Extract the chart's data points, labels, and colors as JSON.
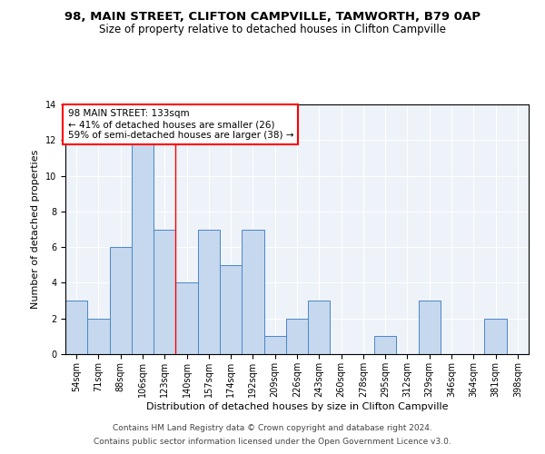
{
  "title": "98, MAIN STREET, CLIFTON CAMPVILLE, TAMWORTH, B79 0AP",
  "subtitle": "Size of property relative to detached houses in Clifton Campville",
  "xlabel": "Distribution of detached houses by size in Clifton Campville",
  "ylabel": "Number of detached properties",
  "footer_line1": "Contains HM Land Registry data © Crown copyright and database right 2024.",
  "footer_line2": "Contains public sector information licensed under the Open Government Licence v3.0.",
  "annotation_line1": "98 MAIN STREET: 133sqm",
  "annotation_line2": "← 41% of detached houses are smaller (26)",
  "annotation_line3": "59% of semi-detached houses are larger (38) →",
  "bin_labels": [
    "54sqm",
    "71sqm",
    "88sqm",
    "106sqm",
    "123sqm",
    "140sqm",
    "157sqm",
    "174sqm",
    "192sqm",
    "209sqm",
    "226sqm",
    "243sqm",
    "260sqm",
    "278sqm",
    "295sqm",
    "312sqm",
    "329sqm",
    "346sqm",
    "364sqm",
    "381sqm",
    "398sqm"
  ],
  "bar_values": [
    3,
    2,
    6,
    12,
    7,
    4,
    7,
    5,
    7,
    1,
    2,
    3,
    0,
    0,
    1,
    0,
    3,
    0,
    0,
    2,
    0
  ],
  "bar_color": "#c5d8ed",
  "bar_edge_color": "#4a86c8",
  "reference_line_x": 4.5,
  "reference_line_color": "red",
  "ylim": [
    0,
    14
  ],
  "yticks": [
    0,
    2,
    4,
    6,
    8,
    10,
    12,
    14
  ],
  "bg_color": "#eef2f9",
  "annotation_box_color": "white",
  "annotation_box_edge": "red",
  "title_fontsize": 9.5,
  "subtitle_fontsize": 8.5,
  "xlabel_fontsize": 8,
  "ylabel_fontsize": 8,
  "tick_fontsize": 7,
  "annotation_fontsize": 7.5,
  "footer_fontsize": 6.5
}
